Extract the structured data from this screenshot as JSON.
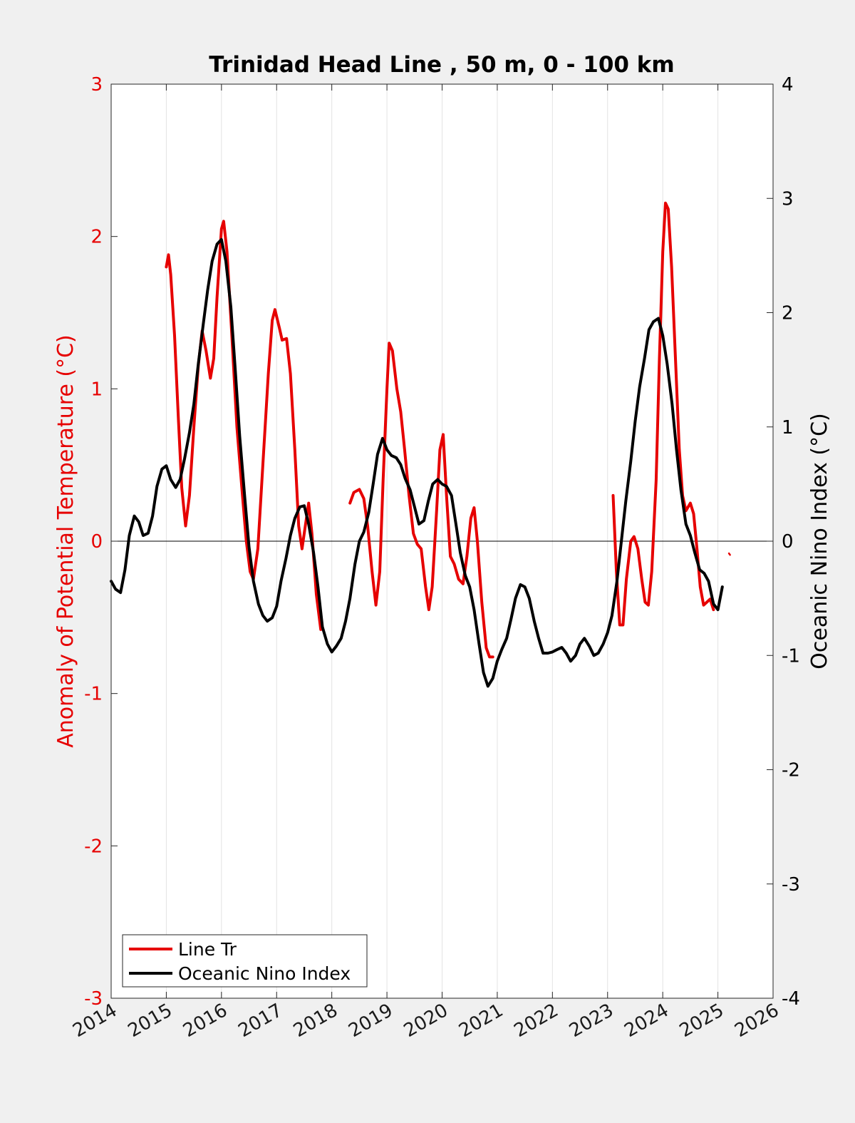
{
  "chart_data": {
    "type": "line",
    "title": "Trinidad Head Line , 50 m, 0 - 100 km",
    "xlabel": "",
    "ylabel_left": "Anomaly of Potential Temperature (°C)",
    "ylabel_right": "Oceanic Nino Index (°C)",
    "xlim": [
      2014,
      2026
    ],
    "ylim_left": [
      -3,
      3
    ],
    "ylim_right": [
      -4,
      4
    ],
    "x_ticks": [
      "2014",
      "2015",
      "2016",
      "2017",
      "2018",
      "2019",
      "2020",
      "2021",
      "2022",
      "2023",
      "2024",
      "2025",
      "2026"
    ],
    "y_ticks_left": [
      "-3",
      "-2",
      "-1",
      "0",
      "1",
      "2",
      "3"
    ],
    "y_ticks_right": [
      "-4",
      "-3",
      "-2",
      "-1",
      "0",
      "1",
      "2",
      "3",
      "4"
    ],
    "grid": "vertical",
    "legend_position": "bottom-left",
    "series": [
      {
        "name": "Line Tr",
        "color": "#e60000",
        "axis": "left",
        "segments": [
          [
            [
              2015.0,
              1.8
            ],
            [
              2015.04,
              1.88
            ],
            [
              2015.08,
              1.75
            ],
            [
              2015.15,
              1.35
            ],
            [
              2015.22,
              0.8
            ],
            [
              2015.28,
              0.35
            ],
            [
              2015.35,
              0.1
            ],
            [
              2015.42,
              0.3
            ],
            [
              2015.5,
              0.75
            ],
            [
              2015.58,
              1.15
            ],
            [
              2015.65,
              1.38
            ],
            [
              2015.72,
              1.25
            ],
            [
              2015.8,
              1.07
            ],
            [
              2015.86,
              1.2
            ],
            [
              2015.92,
              1.6
            ],
            [
              2016.0,
              2.05
            ],
            [
              2016.04,
              2.1
            ],
            [
              2016.1,
              1.9
            ],
            [
              2016.18,
              1.4
            ],
            [
              2016.28,
              0.75
            ],
            [
              2016.38,
              0.3
            ],
            [
              2016.45,
              0.0
            ],
            [
              2016.52,
              -0.2
            ],
            [
              2016.58,
              -0.25
            ],
            [
              2016.66,
              -0.05
            ],
            [
              2016.75,
              0.5
            ],
            [
              2016.85,
              1.1
            ],
            [
              2016.92,
              1.45
            ],
            [
              2016.97,
              1.52
            ],
            [
              2017.05,
              1.4
            ],
            [
              2017.1,
              1.32
            ],
            [
              2017.18,
              1.33
            ],
            [
              2017.25,
              1.1
            ],
            [
              2017.33,
              0.6
            ],
            [
              2017.4,
              0.1
            ],
            [
              2017.46,
              -0.05
            ],
            [
              2017.52,
              0.1
            ],
            [
              2017.58,
              0.25
            ],
            [
              2017.64,
              0.05
            ],
            [
              2017.72,
              -0.35
            ],
            [
              2017.8,
              -0.58
            ]
          ],
          [
            [
              2018.33,
              0.25
            ],
            [
              2018.4,
              0.32
            ],
            [
              2018.5,
              0.34
            ],
            [
              2018.58,
              0.28
            ],
            [
              2018.65,
              0.1
            ],
            [
              2018.73,
              -0.2
            ],
            [
              2018.8,
              -0.42
            ],
            [
              2018.87,
              -0.2
            ],
            [
              2018.93,
              0.4
            ],
            [
              2019.0,
              1.0
            ],
            [
              2019.04,
              1.3
            ],
            [
              2019.1,
              1.25
            ],
            [
              2019.18,
              1.0
            ],
            [
              2019.25,
              0.85
            ],
            [
              2019.32,
              0.6
            ],
            [
              2019.4,
              0.3
            ],
            [
              2019.48,
              0.05
            ],
            [
              2019.55,
              -0.02
            ],
            [
              2019.62,
              -0.05
            ],
            [
              2019.7,
              -0.3
            ],
            [
              2019.76,
              -0.45
            ],
            [
              2019.82,
              -0.3
            ],
            [
              2019.9,
              0.2
            ],
            [
              2019.96,
              0.6
            ],
            [
              2020.02,
              0.7
            ],
            [
              2020.08,
              0.3
            ],
            [
              2020.15,
              -0.1
            ],
            [
              2020.22,
              -0.15
            ],
            [
              2020.3,
              -0.25
            ],
            [
              2020.38,
              -0.28
            ],
            [
              2020.45,
              -0.1
            ],
            [
              2020.52,
              0.15
            ],
            [
              2020.58,
              0.22
            ],
            [
              2020.64,
              0.0
            ],
            [
              2020.72,
              -0.4
            ],
            [
              2020.8,
              -0.7
            ],
            [
              2020.86,
              -0.76
            ],
            [
              2020.92,
              -0.76
            ]
          ],
          [
            [
              2023.1,
              0.3
            ],
            [
              2023.16,
              -0.2
            ],
            [
              2023.22,
              -0.55
            ],
            [
              2023.28,
              -0.55
            ],
            [
              2023.34,
              -0.25
            ],
            [
              2023.42,
              0.0
            ],
            [
              2023.48,
              0.03
            ],
            [
              2023.55,
              -0.05
            ],
            [
              2023.62,
              -0.25
            ],
            [
              2023.68,
              -0.4
            ],
            [
              2023.74,
              -0.42
            ],
            [
              2023.8,
              -0.2
            ],
            [
              2023.88,
              0.4
            ],
            [
              2023.94,
              1.2
            ],
            [
              2024.0,
              1.9
            ],
            [
              2024.05,
              2.22
            ],
            [
              2024.1,
              2.18
            ],
            [
              2024.16,
              1.8
            ],
            [
              2024.23,
              1.2
            ],
            [
              2024.3,
              0.6
            ],
            [
              2024.36,
              0.3
            ],
            [
              2024.42,
              0.2
            ],
            [
              2024.5,
              0.25
            ],
            [
              2024.56,
              0.18
            ],
            [
              2024.62,
              -0.05
            ],
            [
              2024.68,
              -0.3
            ],
            [
              2024.74,
              -0.42
            ],
            [
              2024.8,
              -0.4
            ],
            [
              2024.86,
              -0.38
            ],
            [
              2024.92,
              -0.45
            ]
          ],
          [
            [
              2025.2,
              -0.08
            ],
            [
              2025.22,
              -0.09
            ]
          ]
        ]
      },
      {
        "name": "Oceanic Nino Index",
        "color": "#000000",
        "axis": "right",
        "segments": [
          [
            [
              2014.0,
              -0.35
            ],
            [
              2014.08,
              -0.42
            ],
            [
              2014.17,
              -0.45
            ],
            [
              2014.25,
              -0.25
            ],
            [
              2014.33,
              0.05
            ],
            [
              2014.42,
              0.22
            ],
            [
              2014.5,
              0.17
            ],
            [
              2014.58,
              0.05
            ],
            [
              2014.67,
              0.07
            ],
            [
              2014.75,
              0.22
            ],
            [
              2014.83,
              0.48
            ],
            [
              2014.92,
              0.63
            ],
            [
              2015.0,
              0.66
            ],
            [
              2015.08,
              0.54
            ],
            [
              2015.17,
              0.47
            ],
            [
              2015.25,
              0.54
            ],
            [
              2015.33,
              0.72
            ],
            [
              2015.42,
              0.95
            ],
            [
              2015.5,
              1.2
            ],
            [
              2015.58,
              1.55
            ],
            [
              2015.67,
              1.9
            ],
            [
              2015.75,
              2.2
            ],
            [
              2015.83,
              2.45
            ],
            [
              2015.92,
              2.6
            ],
            [
              2016.0,
              2.64
            ],
            [
              2016.08,
              2.45
            ],
            [
              2016.17,
              2.05
            ],
            [
              2016.25,
              1.5
            ],
            [
              2016.33,
              0.92
            ],
            [
              2016.42,
              0.4
            ],
            [
              2016.5,
              -0.05
            ],
            [
              2016.58,
              -0.35
            ],
            [
              2016.67,
              -0.55
            ],
            [
              2016.75,
              -0.65
            ],
            [
              2016.83,
              -0.7
            ],
            [
              2016.92,
              -0.67
            ],
            [
              2017.0,
              -0.57
            ],
            [
              2017.08,
              -0.35
            ],
            [
              2017.17,
              -0.15
            ],
            [
              2017.25,
              0.05
            ],
            [
              2017.33,
              0.2
            ],
            [
              2017.42,
              0.3
            ],
            [
              2017.5,
              0.31
            ],
            [
              2017.58,
              0.15
            ],
            [
              2017.67,
              -0.1
            ],
            [
              2017.75,
              -0.4
            ],
            [
              2017.83,
              -0.75
            ],
            [
              2017.92,
              -0.9
            ],
            [
              2018.0,
              -0.97
            ],
            [
              2018.08,
              -0.92
            ],
            [
              2018.17,
              -0.85
            ],
            [
              2018.25,
              -0.7
            ],
            [
              2018.33,
              -0.5
            ],
            [
              2018.42,
              -0.2
            ],
            [
              2018.5,
              0.0
            ],
            [
              2018.58,
              0.08
            ],
            [
              2018.67,
              0.25
            ],
            [
              2018.75,
              0.5
            ],
            [
              2018.83,
              0.76
            ],
            [
              2018.92,
              0.9
            ],
            [
              2019.0,
              0.8
            ],
            [
              2019.08,
              0.75
            ],
            [
              2019.17,
              0.73
            ],
            [
              2019.25,
              0.67
            ],
            [
              2019.33,
              0.55
            ],
            [
              2019.42,
              0.45
            ],
            [
              2019.5,
              0.3
            ],
            [
              2019.58,
              0.15
            ],
            [
              2019.67,
              0.18
            ],
            [
              2019.75,
              0.35
            ],
            [
              2019.83,
              0.5
            ],
            [
              2019.92,
              0.54
            ],
            [
              2020.0,
              0.5
            ],
            [
              2020.08,
              0.48
            ],
            [
              2020.17,
              0.4
            ],
            [
              2020.25,
              0.15
            ],
            [
              2020.33,
              -0.1
            ],
            [
              2020.42,
              -0.3
            ],
            [
              2020.5,
              -0.4
            ],
            [
              2020.58,
              -0.6
            ],
            [
              2020.67,
              -0.9
            ],
            [
              2020.75,
              -1.15
            ],
            [
              2020.83,
              -1.27
            ],
            [
              2020.92,
              -1.2
            ],
            [
              2021.0,
              -1.05
            ],
            [
              2021.08,
              -0.95
            ],
            [
              2021.17,
              -0.85
            ],
            [
              2021.25,
              -0.68
            ],
            [
              2021.33,
              -0.5
            ],
            [
              2021.42,
              -0.38
            ],
            [
              2021.5,
              -0.4
            ],
            [
              2021.58,
              -0.5
            ],
            [
              2021.67,
              -0.7
            ],
            [
              2021.75,
              -0.85
            ],
            [
              2021.83,
              -0.98
            ],
            [
              2021.92,
              -0.98
            ],
            [
              2022.0,
              -0.97
            ],
            [
              2022.08,
              -0.95
            ],
            [
              2022.17,
              -0.93
            ],
            [
              2022.25,
              -0.98
            ],
            [
              2022.33,
              -1.05
            ],
            [
              2022.42,
              -1.0
            ],
            [
              2022.5,
              -0.9
            ],
            [
              2022.58,
              -0.85
            ],
            [
              2022.67,
              -0.92
            ],
            [
              2022.75,
              -1.0
            ],
            [
              2022.83,
              -0.98
            ],
            [
              2022.92,
              -0.9
            ],
            [
              2023.0,
              -0.8
            ],
            [
              2023.08,
              -0.65
            ],
            [
              2023.17,
              -0.35
            ],
            [
              2023.25,
              0.0
            ],
            [
              2023.33,
              0.35
            ],
            [
              2023.42,
              0.7
            ],
            [
              2023.5,
              1.05
            ],
            [
              2023.58,
              1.35
            ],
            [
              2023.67,
              1.6
            ],
            [
              2023.75,
              1.85
            ],
            [
              2023.83,
              1.92
            ],
            [
              2023.92,
              1.95
            ],
            [
              2024.0,
              1.8
            ],
            [
              2024.08,
              1.55
            ],
            [
              2024.17,
              1.2
            ],
            [
              2024.25,
              0.8
            ],
            [
              2024.33,
              0.45
            ],
            [
              2024.42,
              0.15
            ],
            [
              2024.5,
              0.05
            ],
            [
              2024.58,
              -0.1
            ],
            [
              2024.67,
              -0.25
            ],
            [
              2024.75,
              -0.28
            ],
            [
              2024.83,
              -0.35
            ],
            [
              2024.92,
              -0.55
            ],
            [
              2025.0,
              -0.6
            ],
            [
              2025.08,
              -0.4
            ]
          ]
        ]
      }
    ]
  }
}
